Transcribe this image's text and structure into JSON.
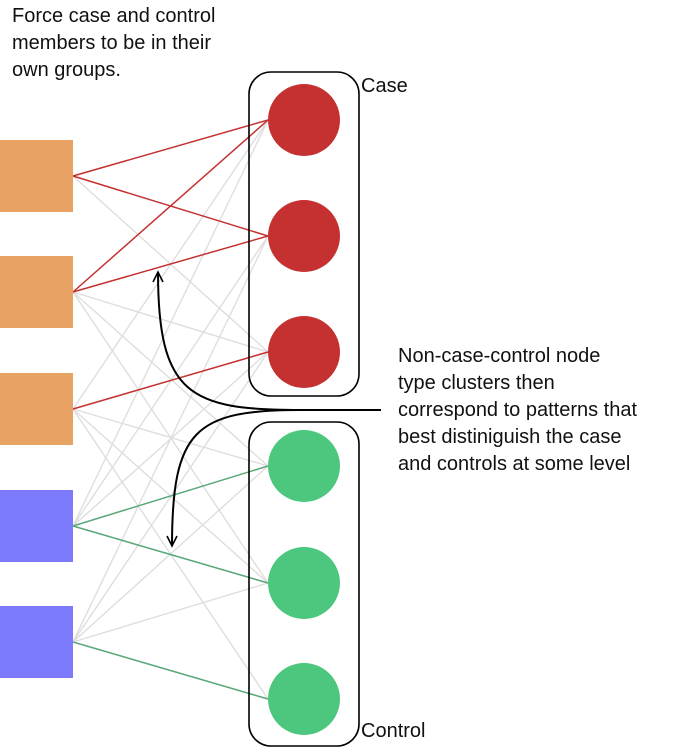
{
  "annotations": {
    "top_note": "Force case and control\nmembers to be in their\nown groups.",
    "right_note": "Non-case-control node\ntype clusters then\ncorrespond to patterns that\nbest distiniguish the case\nand controls at some level"
  },
  "groups": {
    "case_label": "Case",
    "control_label": "Control"
  },
  "colors": {
    "square_orange": "#E8A263",
    "square_blue": "#7B7BFB",
    "case_circle": "#C43130",
    "control_circle": "#4EC77E",
    "case_edge": "#C43130",
    "control_edge": "#5AA87A",
    "faint_edge": "#DEDEDE",
    "outline": "#000000"
  },
  "left_nodes": [
    "orange",
    "orange",
    "orange",
    "blue",
    "blue"
  ],
  "right_nodes": [
    "case",
    "case",
    "case",
    "control",
    "control",
    "control"
  ],
  "edges": {
    "case": [
      [
        0,
        0
      ],
      [
        0,
        1
      ],
      [
        1,
        0
      ],
      [
        1,
        1
      ],
      [
        2,
        2
      ]
    ],
    "control": [
      [
        3,
        3
      ],
      [
        3,
        4
      ],
      [
        4,
        5
      ]
    ],
    "faint": [
      [
        1,
        2
      ],
      [
        1,
        3
      ],
      [
        1,
        4
      ],
      [
        2,
        3
      ],
      [
        2,
        4
      ],
      [
        2,
        5
      ],
      [
        3,
        0
      ],
      [
        3,
        1
      ],
      [
        3,
        2
      ],
      [
        4,
        1
      ],
      [
        4,
        2
      ],
      [
        4,
        3
      ],
      [
        4,
        4
      ],
      [
        0,
        2
      ],
      [
        2,
        0
      ]
    ]
  }
}
